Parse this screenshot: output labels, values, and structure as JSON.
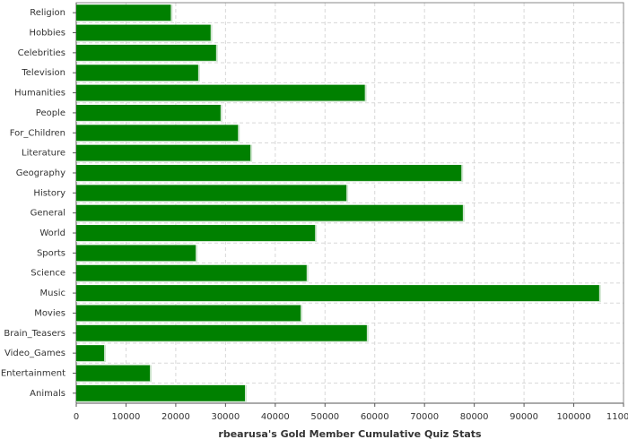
{
  "chart_data": {
    "type": "hbar",
    "title": "rbearusa's Gold Member Cumulative Quiz Stats",
    "categories": [
      "Religion",
      "Hobbies",
      "Celebrities",
      "Television",
      "Humanities",
      "People",
      "For_Children",
      "Literature",
      "Geography",
      "History",
      "General",
      "World",
      "Sports",
      "Science",
      "Music",
      "Movies",
      "Brain_Teasers",
      "Video_Games",
      "Entertainment",
      "Animals"
    ],
    "values": [
      19000,
      27000,
      28100,
      24500,
      58000,
      29000,
      32500,
      35000,
      77400,
      54300,
      77700,
      48000,
      24000,
      46300,
      105100,
      45100,
      58400,
      5600,
      14800,
      33900
    ],
    "color": "#008000",
    "xlim": [
      0,
      110000
    ],
    "xticks": [
      0,
      10000,
      20000,
      30000,
      40000,
      50000,
      60000,
      70000,
      80000,
      90000,
      100000,
      110000
    ],
    "grid": true
  }
}
